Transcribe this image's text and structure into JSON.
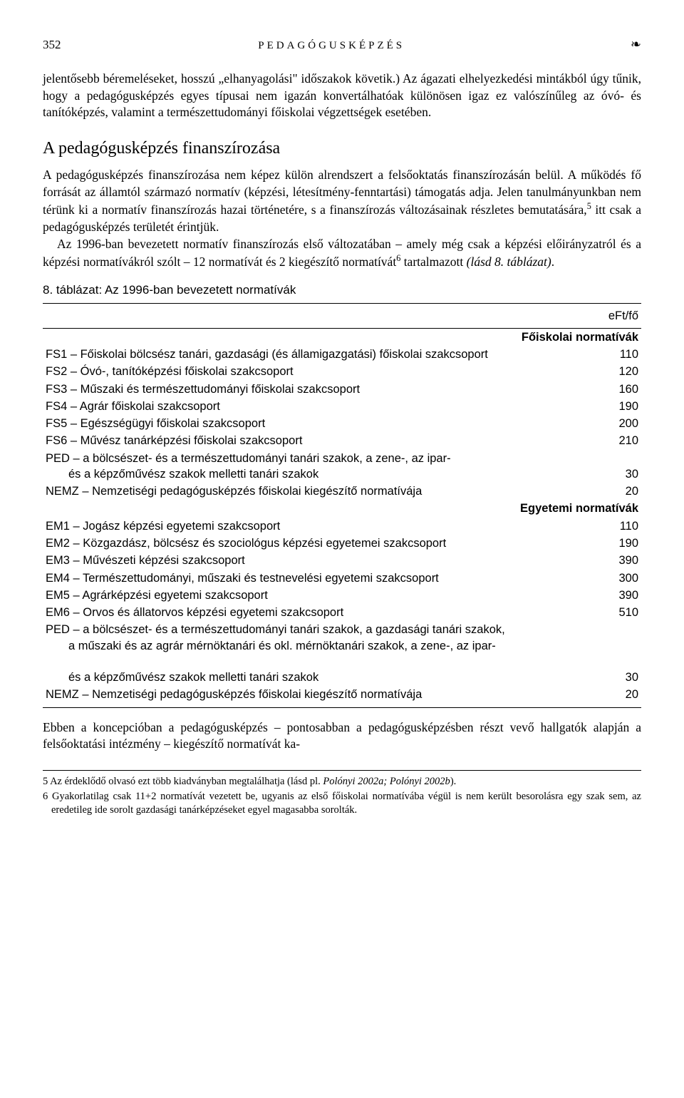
{
  "header": {
    "page_number": "352",
    "running_head": "PEDAGÓGUSKÉPZÉS",
    "flourish": "❧"
  },
  "para1": "jelentősebb béremeléseket, hosszú „elhanyagolási\" időszakok követik.) Az ágazati elhelyezkedési mintákból úgy tűnik, hogy a pedagógusképzés egyes típusai nem igazán konvertálhatóak különösen igaz ez valószínűleg az óvó- és tanítóképzés, valamint a természettudományi főiskolai végzettségek esetében.",
  "section_title": "A pedagógusképzés finanszírozása",
  "para2a": "A pedagógusképzés finanszírozása nem képez külön alrendszert a felsőoktatás finanszírozásán belül. A működés fő forrását az államtól származó normatív (képzési, létesítmény-fenntartási) támogatás adja. Jelen tanulmányunkban nem térünk ki a normatív finanszírozás hazai történetére, s a finanszírozás változásainak részletes bemutatására,",
  "para2b": " itt csak a pedagógusképzés területét érintjük.",
  "para3a": "Az 1996-ban bevezetett normatív finanszírozás első változatában – amely még csak a képzési előirányzatról és a képzési normatívákról szólt – 12 normatívát és 2 kiegészítő normatívát",
  "para3b": " tartalmazott ",
  "para3c": "(lásd 8. táblázat)",
  "para3d": ".",
  "table_caption": "8. táblázat: Az 1996-ban bevezetett normatívák",
  "table": {
    "col_header_right": "eFt/fő",
    "section1": "Főiskolai normatívák",
    "rows1": [
      [
        "FS1 – Főiskolai bölcsész tanári, gazdasági (és államigazgatási) főiskolai szakcsoport",
        "110"
      ],
      [
        "FS2 – Óvó-, tanítóképzési főiskolai szakcsoport",
        "120"
      ],
      [
        "FS3 – Műszaki és természettudományi főiskolai szakcsoport",
        "160"
      ],
      [
        "FS4 – Agrár főiskolai szakcsoport",
        "190"
      ],
      [
        "FS5 – Egészségügyi főiskolai szakcsoport",
        "200"
      ],
      [
        "FS6 – Művész tanárképzési főiskolai szakcsoport",
        "210"
      ]
    ],
    "ped1_lines": [
      "PED – a bölcsészet- és a természettudományi tanári szakok, a zene-, az ipar-",
      "és a képzőművész szakok melletti tanári szakok"
    ],
    "ped1_val": "30",
    "nemz1": [
      "NEMZ – Nemzetiségi pedagógusképzés főiskolai kiegészítő normatívája",
      "20"
    ],
    "section2": "Egyetemi normatívák",
    "rows2": [
      [
        "EM1 – Jogász képzési egyetemi szakcsoport",
        "110"
      ],
      [
        "EM2 – Közgazdász, bölcsész és szociológus képzési egyetemei szakcsoport",
        "190"
      ],
      [
        "EM3 – Művészeti képzési szakcsoport",
        "390"
      ],
      [
        "EM4 – Természettudományi, műszaki és testnevelési egyetemi szakcsoport",
        "300"
      ],
      [
        "EM5 – Agrárképzési egyetemi szakcsoport",
        "390"
      ],
      [
        "EM6 – Orvos és állatorvos képzési egyetemi szakcsoport",
        "510"
      ]
    ],
    "ped2_lines": [
      "PED – a bölcsészet- és a természettudományi tanári szakok, a gazdasági tanári szakok,",
      "a műszaki és az agrár mérnöktanári és okl. mérnöktanári szakok, a zene-, az ipar-",
      "és a képzőművész szakok melletti tanári szakok"
    ],
    "ped2_val": "30",
    "nemz2": [
      "NEMZ – Nemzetiségi pedagógusképzés főiskolai kiegészítő normatívája",
      "20"
    ]
  },
  "para4": "Ebben a koncepcióban a pedagógusképzés – pontosabban a pedagógusképzésben részt vevő hallgatók alapján a felsőoktatási intézmény – kiegészítő normatívát ka-",
  "footnotes": {
    "fn5a": "5 Az érdeklődő olvasó ezt több kiadványban megtalálhatja (lásd pl. ",
    "fn5b": "Polónyi 2002a; Polónyi 2002b",
    "fn5c": ").",
    "fn6": "6 Gyakorlatilag csak 11+2 normatívát vezetett be, ugyanis az első főiskolai normatívába végül is nem került besorolásra egy szak sem, az eredetileg ide sorolt gazdasági tanárképzéseket egyel magasabba sorolták."
  }
}
